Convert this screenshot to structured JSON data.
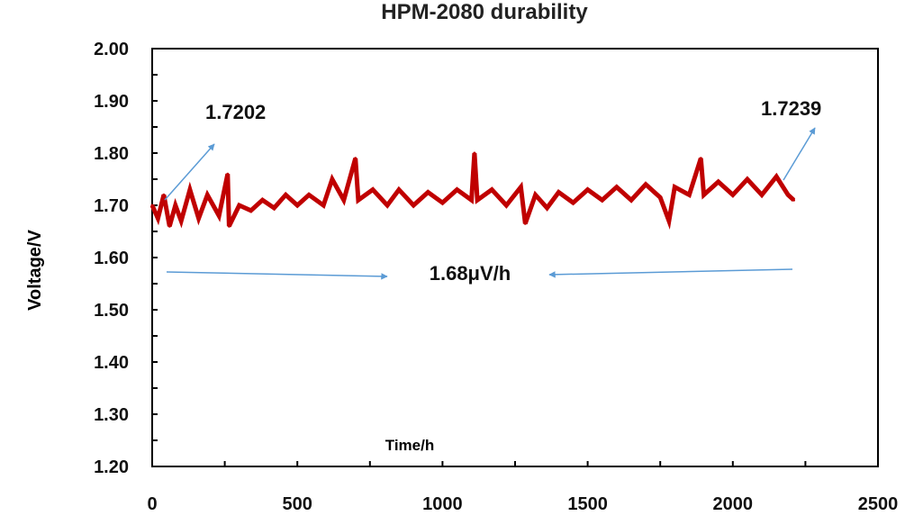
{
  "chart_data": {
    "type": "line",
    "title": "HPM-2080 durability",
    "xlabel": "Time/h",
    "ylabel": "Voltage/V",
    "xlim": [
      0,
      2500
    ],
    "ylim": [
      1.2,
      2.0
    ],
    "xticks": [
      "0",
      "500",
      "1000",
      "1500",
      "2000",
      "2500"
    ],
    "yticks": [
      "1.20",
      "1.30",
      "1.40",
      "1.50",
      "1.60",
      "1.70",
      "1.80",
      "1.90",
      "2.00"
    ],
    "grid": false,
    "legend": "none",
    "series": [
      {
        "color": "#C00000",
        "x": [
          0,
          20,
          40,
          60,
          80,
          100,
          130,
          160,
          190,
          230,
          260,
          265,
          300,
          340,
          380,
          420,
          460,
          500,
          540,
          590,
          620,
          660,
          700,
          710,
          760,
          810,
          850,
          900,
          950,
          1000,
          1050,
          1100,
          1110,
          1120,
          1170,
          1220,
          1270,
          1285,
          1320,
          1360,
          1400,
          1450,
          1500,
          1550,
          1600,
          1650,
          1700,
          1750,
          1780,
          1800,
          1850,
          1890,
          1900,
          1950,
          2000,
          2050,
          2100,
          2150,
          2190,
          2210
        ],
        "y": [
          1.7,
          1.675,
          1.72,
          1.66,
          1.7,
          1.67,
          1.73,
          1.675,
          1.72,
          1.68,
          1.76,
          1.66,
          1.7,
          1.69,
          1.71,
          1.695,
          1.72,
          1.7,
          1.72,
          1.7,
          1.75,
          1.71,
          1.79,
          1.71,
          1.73,
          1.7,
          1.73,
          1.7,
          1.725,
          1.705,
          1.73,
          1.71,
          1.8,
          1.71,
          1.73,
          1.7,
          1.735,
          1.665,
          1.72,
          1.695,
          1.725,
          1.705,
          1.73,
          1.71,
          1.735,
          1.71,
          1.74,
          1.715,
          1.67,
          1.735,
          1.72,
          1.79,
          1.72,
          1.745,
          1.72,
          1.75,
          1.72,
          1.755,
          1.72,
          1.71
        ]
      }
    ],
    "annotations": {
      "start_value": "1.7202",
      "end_value": "1.7239",
      "rate": "1.68μV/h"
    },
    "annotation_color": "#5B9BD5"
  }
}
